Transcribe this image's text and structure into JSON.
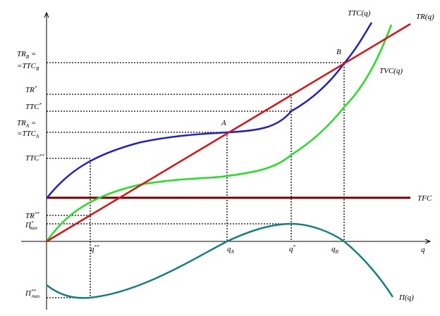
{
  "curves": {
    "ttc": "TTC(q)",
    "tr": "TR(q)",
    "tvc": "TVC(q)",
    "tfc": "TFC",
    "profit": "Π(q)"
  },
  "axis": {
    "x": "q"
  },
  "points": {
    "a": "A",
    "b": "B"
  },
  "x_labels": [
    {
      "text": "q",
      "sup": "**"
    },
    {
      "text": "q",
      "sub": "A"
    },
    {
      "text": "q",
      "sup": "*"
    },
    {
      "text": "q",
      "sub": "B"
    }
  ],
  "y_labels": [
    {
      "line1": {
        "text": "TR",
        "sub": "B",
        "after": " ="
      },
      "line2": {
        "text": "=TTC",
        "sub": "B"
      }
    },
    {
      "text": "TR",
      "sup": "*"
    },
    {
      "text": "TTC",
      "sup": "*"
    },
    {
      "line1": {
        "text": "TR",
        "sub": "A",
        "after": " ="
      },
      "line2": {
        "text": "=TTC",
        "sub": "A"
      }
    },
    {
      "text": "TTC",
      "sup": "**"
    },
    {
      "text": "TR",
      "sup": "**"
    },
    {
      "text": "Π",
      "sup": "*",
      "sub": "max"
    },
    {
      "text": "Π",
      "sup": "**",
      "sub": "max"
    }
  ]
}
